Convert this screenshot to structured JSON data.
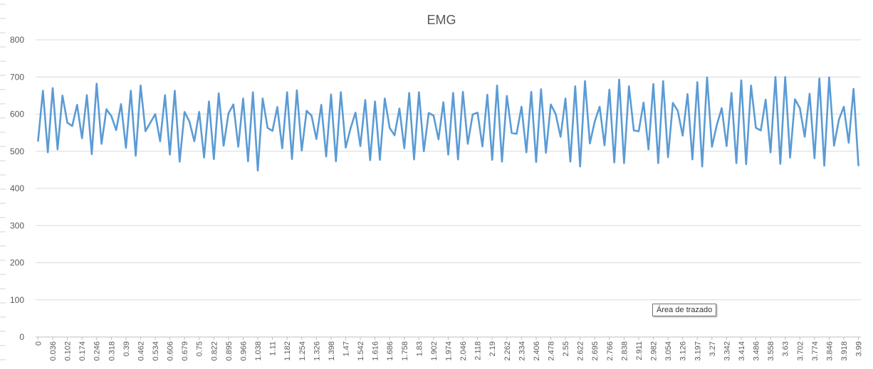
{
  "chart_data": {
    "type": "line",
    "title": "EMG",
    "xlabel": "",
    "ylabel": "",
    "ylim": [
      0,
      800
    ],
    "yticks": [
      0,
      100,
      200,
      300,
      400,
      500,
      600,
      700,
      800
    ],
    "grid": true,
    "legend": "none",
    "x_tick_labels": [
      "0",
      "0.036",
      "0.102",
      "0.174",
      "0.246",
      "0.318",
      "0.39",
      "0.462",
      "0.534",
      "0.606",
      "0.679",
      "0.75",
      "0.822",
      "0.895",
      "0.966",
      "1.038",
      "1.11",
      "1.182",
      "1.254",
      "1.326",
      "1.398",
      "1.47",
      "1.542",
      "1.616",
      "1.686",
      "1.758",
      "1.83",
      "1.902",
      "1.974",
      "2.046",
      "2.118",
      "2.19",
      "2.262",
      "2.334",
      "2.406",
      "2.478",
      "2.55",
      "2.622",
      "2.695",
      "2.766",
      "2.838",
      "2.911",
      "2.982",
      "3.054",
      "3.126",
      "3.197",
      "3.27",
      "3.342",
      "3.414",
      "3.486",
      "3.558",
      "3.63",
      "3.702",
      "3.774",
      "3.846",
      "3.918",
      "3.99"
    ],
    "series": [
      {
        "color": "#5b9bd5",
        "values": [
          528,
          663,
          497,
          670,
          505,
          650,
          577,
          568,
          625,
          535,
          651,
          492,
          682,
          520,
          613,
          595,
          557,
          627,
          509,
          663,
          488,
          677,
          554,
          577,
          600,
          527,
          651,
          491,
          663,
          472,
          606,
          580,
          527,
          606,
          483,
          634,
          479,
          656,
          515,
          602,
          626,
          512,
          642,
          473,
          659,
          448,
          642,
          563,
          555,
          619,
          508,
          659,
          479,
          664,
          502,
          609,
          596,
          533,
          625,
          486,
          653,
          473,
          659,
          510,
          562,
          604,
          514,
          638,
          476,
          634,
          477,
          642,
          563,
          543,
          615,
          508,
          657,
          478,
          659,
          500,
          603,
          596,
          532,
          632,
          491,
          657,
          478,
          660,
          520,
          599,
          604,
          513,
          652,
          477,
          677,
          472,
          649,
          549,
          547,
          620,
          497,
          660,
          471,
          667,
          496,
          626,
          600,
          539,
          642,
          472,
          675,
          459,
          689,
          521,
          580,
          620,
          516,
          666,
          470,
          693,
          468,
          675,
          556,
          554,
          631,
          505,
          681,
          468,
          689,
          484,
          630,
          609,
          542,
          654,
          478,
          686,
          459,
          699,
          512,
          571,
          616,
          514,
          657,
          468,
          691,
          465,
          677,
          563,
          556,
          639,
          497,
          700,
          466,
          700,
          483,
          640,
          616,
          539,
          655,
          481,
          696,
          461,
          699,
          515,
          585,
          620,
          523,
          668,
          462
        ]
      }
    ]
  }
}
